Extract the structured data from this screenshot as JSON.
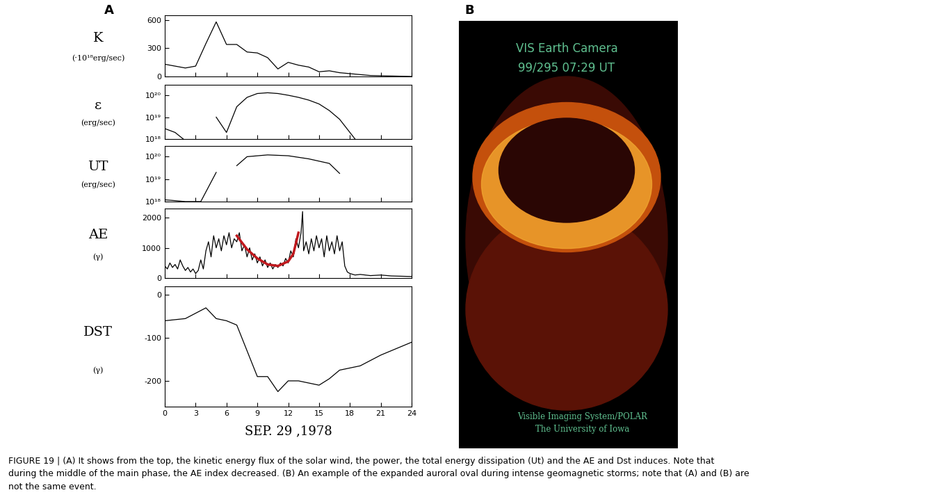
{
  "panel_labels": [
    "A",
    "B"
  ],
  "chart_data": [
    {
      "type": "line",
      "ylabel": "K",
      "yunit": "(·10¹⁸erg/sec)",
      "xlim": [
        0,
        24
      ],
      "xticks": [
        0,
        3,
        6,
        9,
        12,
        15,
        18,
        21,
        24
      ],
      "ylim": [
        0,
        650
      ],
      "yticks": [
        0,
        300,
        600
      ],
      "tick_labels": "y",
      "series": [
        {
          "color": "#000000",
          "x": [
            0,
            1,
            2,
            3,
            4,
            5,
            6,
            7,
            8,
            9,
            10,
            11,
            12,
            13,
            14,
            15,
            16,
            17,
            18,
            19,
            20,
            24
          ],
          "values": [
            130,
            110,
            90,
            110,
            350,
            580,
            340,
            340,
            260,
            250,
            200,
            80,
            150,
            120,
            100,
            50,
            60,
            40,
            30,
            20,
            10,
            0
          ]
        }
      ]
    },
    {
      "type": "line",
      "ylabel": "ε",
      "yunit": "(erg/sec)",
      "log": "y",
      "xlim": [
        0,
        24
      ],
      "xticks": [
        0,
        3,
        6,
        9,
        12,
        15,
        18,
        21,
        24
      ],
      "ylim": [
        1e+18,
        3e+20
      ],
      "yticks": [
        {
          "value": 1e+18,
          "label": "10¹⁸"
        },
        {
          "value": 1e+19,
          "label": "10¹⁹"
        },
        {
          "value": 1e+20,
          "label": "10²⁰"
        }
      ],
      "tick_labels": "y",
      "series": [
        {
          "color": "#000000",
          "x": [
            0,
            1,
            1.8,
            3,
            5,
            6,
            7,
            8,
            9,
            10,
            11,
            12,
            13,
            14,
            15,
            16,
            17,
            18,
            18.5
          ],
          "values": [
            3e+18,
            2e+18,
            1e+18,
            null,
            1e+19,
            2e+18,
            3e+19,
            8e+19,
            1.2e+20,
            1.3e+20,
            1.2e+20,
            1e+20,
            8e+19,
            6e+19,
            4e+19,
            2e+19,
            8e+18,
            2e+18,
            1e+18
          ]
        }
      ]
    },
    {
      "type": "line",
      "ylabel": "UT",
      "yunit": "(erg/sec)",
      "log": "y",
      "xlim": [
        0,
        24
      ],
      "xticks": [
        0,
        3,
        6,
        9,
        12,
        15,
        18,
        21,
        24
      ],
      "ylim": [
        1e+18,
        3e+20
      ],
      "yticks": [
        {
          "value": 1e+18,
          "label": "10¹⁸"
        },
        {
          "value": 1e+19,
          "label": "10¹⁹"
        },
        {
          "value": 1e+20,
          "label": "10²⁰"
        }
      ],
      "tick_labels": "y",
      "series": [
        {
          "color": "#000000",
          "x": [
            0,
            1,
            2,
            3.5,
            5,
            6,
            7,
            8,
            10,
            12,
            14,
            16,
            17
          ],
          "values": [
            1.2e+18,
            1.1e+18,
            1e+18,
            1e+18,
            2e+19,
            null,
            4e+19,
            1e+20,
            1.2e+20,
            1.1e+20,
            8e+19,
            5e+19,
            1.8e+19
          ]
        }
      ]
    },
    {
      "type": "line",
      "ylabel": "AE",
      "yunit": "(γ)",
      "xlim": [
        0,
        24
      ],
      "xticks": [
        0,
        3,
        6,
        9,
        12,
        15,
        18,
        21,
        24
      ],
      "ylim": [
        0,
        2300
      ],
      "yticks": [
        0,
        1000,
        2000
      ],
      "tick_labels": "y",
      "series": [
        {
          "color": "#000000",
          "x": [
            0,
            0.25,
            0.5,
            0.75,
            1,
            1.25,
            1.5,
            1.75,
            2,
            2.25,
            2.5,
            2.75,
            3,
            3.25,
            3.5,
            3.75,
            4,
            4.25,
            4.5,
            4.75,
            5,
            5.25,
            5.5,
            5.75,
            6,
            6.25,
            6.5,
            6.75,
            7,
            7.25,
            7.5,
            7.75,
            8,
            8.25,
            8.5,
            8.75,
            9,
            9.25,
            9.5,
            9.75,
            10,
            10.25,
            10.5,
            10.75,
            11,
            11.25,
            11.5,
            11.75,
            12,
            12.25,
            12.5,
            12.75,
            13,
            13.25,
            13.4,
            13.5,
            13.75,
            14,
            14.25,
            14.5,
            14.75,
            15,
            15.25,
            15.5,
            15.75,
            16,
            16.25,
            16.5,
            16.75,
            17,
            17.25,
            17.5,
            17.75,
            18,
            18.5,
            19,
            20,
            21,
            22,
            23,
            24
          ],
          "values": [
            400,
            300,
            500,
            350,
            450,
            300,
            600,
            400,
            250,
            350,
            200,
            300,
            150,
            250,
            600,
            300,
            900,
            1200,
            700,
            1400,
            1000,
            1300,
            900,
            1400,
            1100,
            1500,
            1000,
            1300,
            1200,
            1500,
            900,
            1100,
            700,
            1000,
            600,
            800,
            500,
            700,
            400,
            600,
            350,
            500,
            300,
            450,
            350,
            500,
            400,
            650,
            500,
            900,
            700,
            1300,
            1000,
            1500,
            2200,
            900,
            1200,
            800,
            1300,
            900,
            1400,
            1000,
            1300,
            700,
            1400,
            900,
            1200,
            800,
            1400,
            900,
            1200,
            400,
            200,
            150,
            100,
            120,
            80,
            100,
            70,
            60,
            50
          ]
        },
        {
          "color": "#c0191e",
          "x": [
            7,
            8,
            9,
            10,
            11,
            12,
            12.5,
            13
          ],
          "values": [
            1400,
            950,
            650,
            450,
            400,
            550,
            800,
            1500
          ]
        }
      ]
    },
    {
      "type": "line",
      "ylabel": "DST",
      "yunit": "(γ)",
      "xlabel": "SEP. 29 ,1978",
      "xlim": [
        0,
        24
      ],
      "xticks": [
        0,
        3,
        6,
        9,
        12,
        15,
        18,
        21,
        24
      ],
      "ylim": [
        -260,
        20
      ],
      "yticks": [
        0,
        -100,
        -200
      ],
      "series": [
        {
          "color": "#000000",
          "x": [
            0,
            2,
            4,
            5,
            6,
            7,
            8,
            9,
            10,
            11,
            12,
            13,
            14,
            15,
            16,
            17,
            18,
            19,
            21,
            24
          ],
          "values": [
            -60,
            -55,
            -30,
            -55,
            -60,
            -70,
            -130,
            -190,
            -190,
            -225,
            -200,
            -200,
            -205,
            -210,
            -195,
            -175,
            -170,
            -165,
            -140,
            -110
          ]
        }
      ]
    }
  ],
  "image_panel": {
    "title": "VIS Earth Camera",
    "timestamp": "99/295 07:29 UT",
    "credit": [
      "Visible Imaging System/POLAR",
      "The University of Iowa"
    ]
  },
  "caption": [
    "FIGURE 19 | (A) It shows from the top, the kinetic energy flux of the solar wind, the power, the total energy dissipation (Ut) and the AE and Dst induces. Note that",
    "during the middle of the main phase, the AE index decreased. (B) An example of the expanded auroral oval during intense geomagnetic storms; note that (A) and (B) are",
    "not the same event."
  ]
}
